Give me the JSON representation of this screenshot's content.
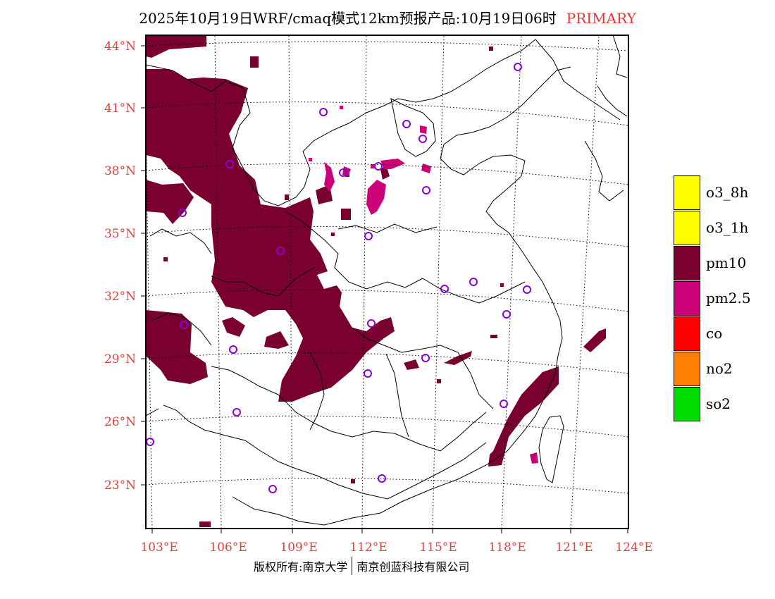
{
  "title": {
    "main": "2025年10月19日WRF/cmaq模式12km预报产品:10月19日06时",
    "tag": "PRIMARY"
  },
  "map": {
    "lat_labels": [
      "44°N",
      "41°N",
      "38°N",
      "35°N",
      "32°N",
      "29°N",
      "26°N",
      "23°N"
    ],
    "lon_labels": [
      "103°E",
      "106°E",
      "109°E",
      "112°E",
      "115°E",
      "118°E",
      "121°E",
      "124°E"
    ],
    "pollutant_fill": "#7a0030",
    "pm25_fill": "#cc0077",
    "station_marker_color": "#8b00d4"
  },
  "legend": [
    {
      "label": "o3_8h",
      "color": "#ffff00"
    },
    {
      "label": "o3_1h",
      "color": "#ffff00"
    },
    {
      "label": "pm10",
      "color": "#7a0030"
    },
    {
      "label": "pm2.5",
      "color": "#cc0077"
    },
    {
      "label": "co",
      "color": "#ff0000"
    },
    {
      "label": "no2",
      "color": "#ff7f00"
    },
    {
      "label": "so2",
      "color": "#00dd00"
    }
  ],
  "footer": {
    "left": "版权所有:南京大学",
    "right": "南京创蓝科技有限公司"
  }
}
